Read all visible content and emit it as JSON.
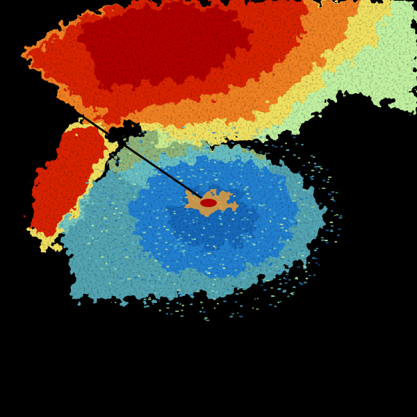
{
  "palette": {
    "background": "#000000",
    "dark_red": "#b00000",
    "red": "#d82000",
    "orange": "#f08020",
    "yellow": "#f0e060",
    "light_green": "#c0f0a0",
    "cyan": "#60c0d0",
    "blue": "#2080d0",
    "dark_blue": "#1060b0"
  }
}
